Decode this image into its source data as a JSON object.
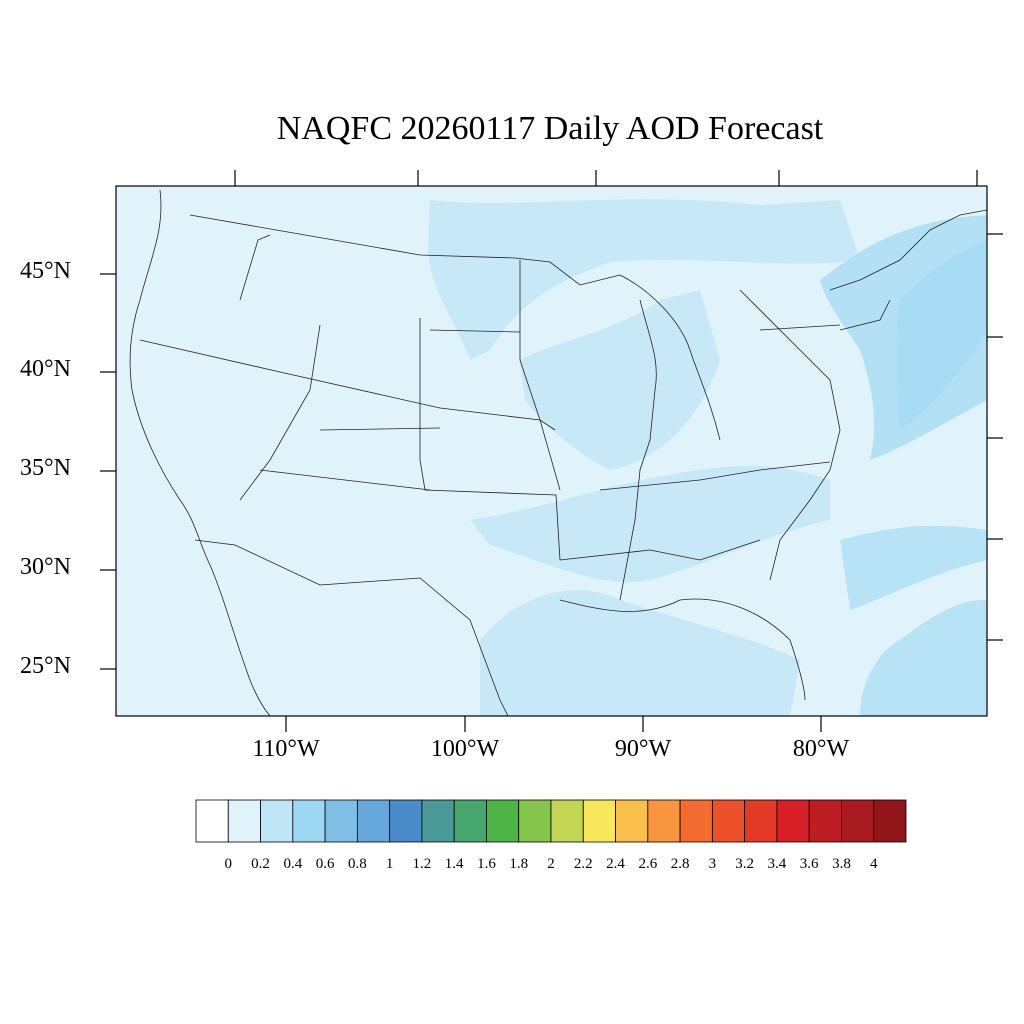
{
  "title": "NAQFC 20260117 Daily AOD Forecast",
  "lat_labels": [
    "45°N",
    "40°N",
    "35°N",
    "30°N",
    "25°N"
  ],
  "lon_labels": [
    "110°W",
    "100°W",
    "90°W",
    "80°W"
  ],
  "colorbar": {
    "labels": [
      "0",
      "0.2",
      "0.4",
      "0.6",
      "0.8",
      "1",
      "1.2",
      "1.4",
      "1.6",
      "1.8",
      "2",
      "2.2",
      "2.4",
      "2.6",
      "2.8",
      "3",
      "3.2",
      "3.4",
      "3.6",
      "3.8",
      "4"
    ],
    "colors": [
      "#ffffff",
      "#e0f3fb",
      "#bfe6f7",
      "#9dd8f3",
      "#7fbfe6",
      "#66a7dc",
      "#4a8bc9",
      "#4a9a9a",
      "#45a76e",
      "#4db548",
      "#84c54c",
      "#c3d653",
      "#f6e85a",
      "#f8bf4a",
      "#f7963e",
      "#f36c2d",
      "#ec5129",
      "#e33a26",
      "#d61f26",
      "#bf1d24",
      "#a91a20",
      "#921619"
    ]
  },
  "colors": {
    "background": "#e0f3fb",
    "haze_light": "#cbeaf8",
    "haze_medium": "#bfe6f7",
    "haze_strong": "#a8dcf4"
  }
}
